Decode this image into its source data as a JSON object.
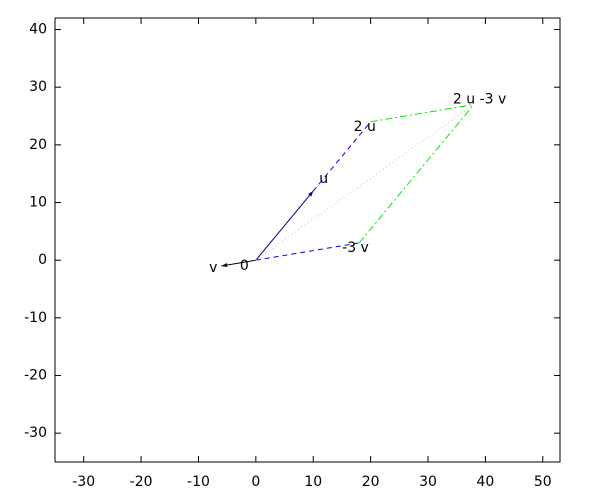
{
  "chart_data": {
    "type": "vector",
    "xlim": [
      -35,
      53
    ],
    "ylim": [
      -35,
      42
    ],
    "xticks": [
      -30,
      -20,
      -10,
      0,
      10,
      20,
      30,
      40,
      50
    ],
    "yticks": [
      -30,
      -20,
      -10,
      0,
      10,
      20,
      30,
      40
    ],
    "points": [
      {
        "label": "0",
        "x": 0,
        "y": 0
      },
      {
        "label": "u",
        "x": 10,
        "y": 12
      },
      {
        "label": "v",
        "x": -6,
        "y": -1
      },
      {
        "label": "2 u",
        "x": 20,
        "y": 24
      },
      {
        "label": "-3 v",
        "x": 18,
        "y": 3
      },
      {
        "label": "2 u -3 v",
        "x": 38,
        "y": 27
      }
    ],
    "segments": [
      {
        "from": [
          0,
          0
        ],
        "to": [
          10,
          12
        ],
        "color": "#000080",
        "style": "solid",
        "arrow": true
      },
      {
        "from": [
          0,
          0
        ],
        "to": [
          -6,
          -1
        ],
        "color": "#000000",
        "style": "solid",
        "arrow": true
      },
      {
        "from": [
          10,
          12
        ],
        "to": [
          20,
          24
        ],
        "color": "#0000ff",
        "style": "dashed",
        "arrow": false
      },
      {
        "from": [
          0,
          0
        ],
        "to": [
          18,
          3
        ],
        "color": "#0000ff",
        "style": "dashed",
        "arrow": false
      },
      {
        "from": [
          20,
          24
        ],
        "to": [
          38,
          27
        ],
        "color": "#00ee00",
        "style": "dashdot",
        "arrow": false
      },
      {
        "from": [
          18,
          3
        ],
        "to": [
          38,
          27
        ],
        "color": "#00ee00",
        "style": "dashdot",
        "arrow": false
      },
      {
        "from": [
          0,
          0
        ],
        "to": [
          38,
          27
        ],
        "color": "#ffaaaa",
        "style": "dotted",
        "arrow": false
      }
    ]
  }
}
